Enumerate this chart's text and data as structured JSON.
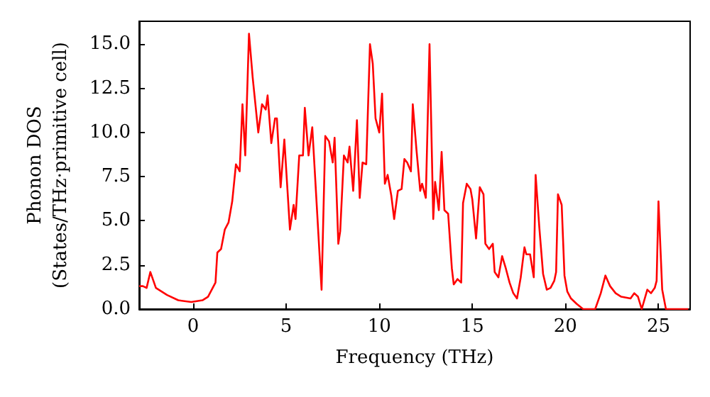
{
  "chart_data": {
    "type": "line",
    "xlabel": "Frequency (THz)",
    "ylabel": "Phonon DOS\n(States/THz·primitive cell)",
    "xlim": [
      -2.9,
      26.7
    ],
    "ylim": [
      0,
      16.3
    ],
    "xticks": [
      0,
      5,
      10,
      15,
      20,
      25
    ],
    "yticks": [
      {
        "value": 0,
        "label": "0.0"
      },
      {
        "value": 2.5,
        "label": "2.5"
      },
      {
        "value": 5,
        "label": "5.0"
      },
      {
        "value": 7.5,
        "label": "7.5"
      },
      {
        "value": 10,
        "label": "10.0"
      },
      {
        "value": 12.5,
        "label": "12.5"
      },
      {
        "value": 15,
        "label": "15.0"
      }
    ],
    "grid": false,
    "marker": "none",
    "line_style": "solid",
    "series": [
      {
        "color": "#ff0000",
        "x": [
          -2.9,
          -2.7,
          -2.5,
          -2.3,
          -2.0,
          -1.4,
          -0.8,
          -0.1,
          0.5,
          0.8,
          1.2,
          1.3,
          1.5,
          1.7,
          1.9,
          2.1,
          2.3,
          2.5,
          2.65,
          2.8,
          3.0,
          3.2,
          3.5,
          3.7,
          3.9,
          4.0,
          4.2,
          4.4,
          4.5,
          4.7,
          4.9,
          5.2,
          5.4,
          5.5,
          5.7,
          5.9,
          6.0,
          6.2,
          6.4,
          6.9,
          7.1,
          7.3,
          7.5,
          7.6,
          7.8,
          7.9,
          8.1,
          8.3,
          8.4,
          8.6,
          8.8,
          8.95,
          9.1,
          9.3,
          9.5,
          9.65,
          9.8,
          10.0,
          10.15,
          10.3,
          10.45,
          10.65,
          10.8,
          11.0,
          11.2,
          11.35,
          11.5,
          11.7,
          11.8,
          12.0,
          12.2,
          12.3,
          12.5,
          12.7,
          12.9,
          13.0,
          13.2,
          13.35,
          13.5,
          13.7,
          13.9,
          14.0,
          14.2,
          14.4,
          14.5,
          14.7,
          14.9,
          15.0,
          15.2,
          15.4,
          15.6,
          15.7,
          15.9,
          16.1,
          16.2,
          16.4,
          16.6,
          16.8,
          17.0,
          17.2,
          17.4,
          17.6,
          17.8,
          17.9,
          18.1,
          18.3,
          18.4,
          18.6,
          18.8,
          19.0,
          19.2,
          19.4,
          19.5,
          19.6,
          19.8,
          19.95,
          20.1,
          20.3,
          20.6,
          20.95,
          21.6,
          21.9,
          22.15,
          22.4,
          22.7,
          23.0,
          23.5,
          23.7,
          23.9,
          24.1,
          24.4,
          24.6,
          24.8,
          24.9,
          25.0,
          25.2,
          25.4,
          26.6
        ],
        "values": [
          1.3,
          1.3,
          1.2,
          2.1,
          1.2,
          0.8,
          0.5,
          0.4,
          0.5,
          0.7,
          1.5,
          3.2,
          3.4,
          4.5,
          4.9,
          6.1,
          8.2,
          7.8,
          11.6,
          8.7,
          15.6,
          13.1,
          10.0,
          11.6,
          11.3,
          12.1,
          9.4,
          10.8,
          10.8,
          6.9,
          9.6,
          4.5,
          5.9,
          5.1,
          8.7,
          8.7,
          11.4,
          8.7,
          10.3,
          1.1,
          9.8,
          9.5,
          8.3,
          9.7,
          3.7,
          4.4,
          8.7,
          8.3,
          9.2,
          6.7,
          10.7,
          6.3,
          8.3,
          8.2,
          15.0,
          13.9,
          10.8,
          10.0,
          12.2,
          7.1,
          7.6,
          6.4,
          5.1,
          6.7,
          6.8,
          8.5,
          8.3,
          7.8,
          11.6,
          9.0,
          6.7,
          7.1,
          6.3,
          15.0,
          5.1,
          7.2,
          5.6,
          8.9,
          5.6,
          5.4,
          2.3,
          1.4,
          1.7,
          1.5,
          6.0,
          7.1,
          6.8,
          6.2,
          4.0,
          6.9,
          6.5,
          3.7,
          3.4,
          3.7,
          2.1,
          1.8,
          3.0,
          2.3,
          1.5,
          0.9,
          0.6,
          1.8,
          3.5,
          3.1,
          3.1,
          1.8,
          7.6,
          4.6,
          2.0,
          1.1,
          1.2,
          1.6,
          2.1,
          6.5,
          5.9,
          1.9,
          1.0,
          0.6,
          0.3,
          0,
          0,
          0.9,
          1.9,
          1.3,
          0.9,
          0.7,
          0.6,
          0.9,
          0.7,
          0,
          1.1,
          0.9,
          1.2,
          1.6,
          6.1,
          1.1,
          0,
          0
        ]
      }
    ]
  }
}
